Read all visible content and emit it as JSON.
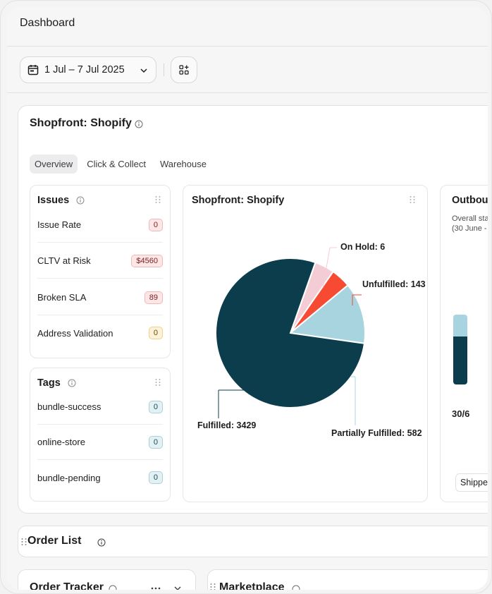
{
  "header": {
    "title": "Dashboard"
  },
  "toolbar": {
    "date_range": "1 Jul – 7 Jul 2025"
  },
  "main_card": {
    "title": "Shopfront: Shopify",
    "tabs": [
      {
        "label": "Overview",
        "active": true
      },
      {
        "label": "Click & Collect",
        "active": false
      },
      {
        "label": "Warehouse",
        "active": false
      }
    ],
    "issues": {
      "title": "Issues",
      "rows": [
        {
          "label": "Issue Rate",
          "value": "0",
          "tone": "red"
        },
        {
          "label": "CLTV at Risk",
          "value": "$4560",
          "tone": "red"
        },
        {
          "label": "Broken SLA",
          "value": "89",
          "tone": "red"
        },
        {
          "label": "Address Validation",
          "value": "0",
          "tone": "amber"
        }
      ]
    },
    "tags": {
      "title": "Tags",
      "rows": [
        {
          "label": "bundle-success",
          "value": "0"
        },
        {
          "label": "online-store",
          "value": "0"
        },
        {
          "label": "bundle-pending",
          "value": "0"
        }
      ]
    },
    "pie": {
      "title": "Shopfront: Shopify",
      "labels": {
        "on_hold": "On Hold: 6",
        "unfulfilled": "Unfulfilled: 143",
        "partially": "Partially Fulfilled: 582",
        "fulfilled": "Fulfilled: 3429"
      }
    },
    "outbound": {
      "title": "Outbound",
      "subtitle_1": "Overall sta",
      "subtitle_2": "(30 June -",
      "ratio": "30/6",
      "chip": "Shipped"
    }
  },
  "order_list": {
    "title": "Order List"
  },
  "order_tracker": {
    "title": "Order Tracker"
  },
  "marketplace": {
    "title": "Marketplace"
  },
  "chart_data": {
    "type": "pie",
    "title": "Shopfront: Shopify",
    "slices": [
      {
        "name": "Fulfilled",
        "value": 3429,
        "color": "#0b3d4d"
      },
      {
        "name": "On Hold",
        "value": 6,
        "color": "#f4ccd6"
      },
      {
        "name": "Unfulfilled",
        "value": 143,
        "color": "#f64a33"
      },
      {
        "name": "Partially Fulfilled",
        "value": 582,
        "color": "#a8d4e0"
      }
    ]
  }
}
